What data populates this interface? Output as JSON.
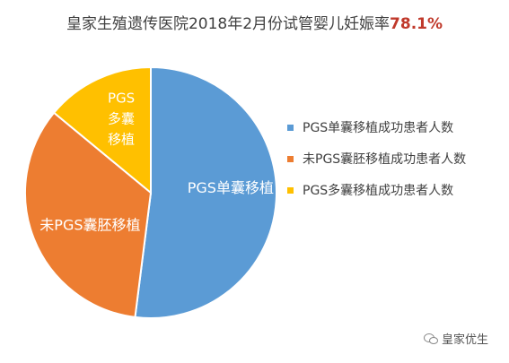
{
  "title": {
    "text": "皇家生殖遗传医院2018年2月份试管婴儿妊娠率",
    "highlight": "78.1%"
  },
  "colors": {
    "series": [
      "#5b9bd5",
      "#ed7d31",
      "#ffc000"
    ]
  },
  "chart_data": {
    "type": "pie",
    "title": "皇家生殖遗传医院2018年2月份试管婴儿妊娠率78.1%",
    "slices": [
      {
        "label": "PGS单囊移植",
        "legend": "PGS单囊移植成功患者人数",
        "value": 52,
        "color": "#5b9bd5"
      },
      {
        "label": "未PGS囊胚移植",
        "legend": "未PGS囊胚移植成功患者人数",
        "value": 34,
        "color": "#ed7d31"
      },
      {
        "label": "PGS多囊移植",
        "legend": "PGS多囊移植成功患者人数",
        "value": 14,
        "color": "#ffc000"
      }
    ],
    "legend_position": "right"
  },
  "watermark": {
    "icon": "wechat-icon",
    "text": "皇家优生"
  }
}
